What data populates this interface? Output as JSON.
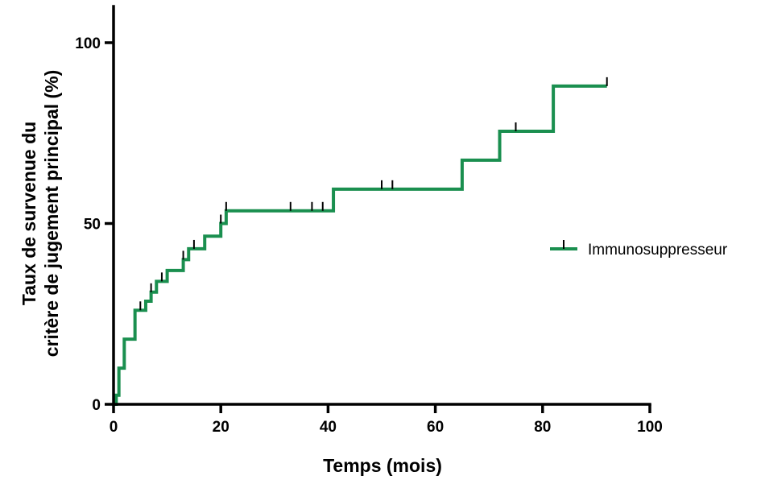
{
  "chart_data": {
    "type": "line",
    "style": "step",
    "title": "",
    "xlabel": "Temps (mois)",
    "ylabel": [
      "Taux de survenue du",
      "critère de jugement principal (%)"
    ],
    "xlim": [
      0,
      100
    ],
    "ylim": [
      0,
      110
    ],
    "xticks": [
      0,
      20,
      40,
      60,
      80,
      100
    ],
    "yticks": [
      0,
      50,
      100
    ],
    "grid": false,
    "legend_position": "right",
    "series": [
      {
        "name": "Immunosuppresseur",
        "color": "#1a8f4f",
        "steps": [
          {
            "x": 0,
            "y": 0
          },
          {
            "x": 0.5,
            "y": 2.5
          },
          {
            "x": 1,
            "y": 10
          },
          {
            "x": 2,
            "y": 18
          },
          {
            "x": 4,
            "y": 26
          },
          {
            "x": 6,
            "y": 28.5
          },
          {
            "x": 7,
            "y": 31
          },
          {
            "x": 8,
            "y": 34
          },
          {
            "x": 10,
            "y": 37
          },
          {
            "x": 13,
            "y": 40
          },
          {
            "x": 14,
            "y": 43
          },
          {
            "x": 17,
            "y": 46.5
          },
          {
            "x": 20,
            "y": 50
          },
          {
            "x": 21,
            "y": 53.5
          },
          {
            "x": 41,
            "y": 59.5
          },
          {
            "x": 65,
            "y": 67.5
          },
          {
            "x": 72,
            "y": 75.5
          },
          {
            "x": 82,
            "y": 88
          },
          {
            "x": 92,
            "y": 88
          }
        ],
        "censored": [
          {
            "x": 5,
            "y": 26
          },
          {
            "x": 7,
            "y": 31
          },
          {
            "x": 9,
            "y": 34
          },
          {
            "x": 13,
            "y": 40
          },
          {
            "x": 15,
            "y": 43
          },
          {
            "x": 20,
            "y": 50
          },
          {
            "x": 21,
            "y": 53.5
          },
          {
            "x": 33,
            "y": 53.5
          },
          {
            "x": 37,
            "y": 53.5
          },
          {
            "x": 39,
            "y": 53.5
          },
          {
            "x": 50,
            "y": 59.5
          },
          {
            "x": 52,
            "y": 59.5
          },
          {
            "x": 75,
            "y": 75.5
          },
          {
            "x": 92,
            "y": 88
          }
        ]
      }
    ]
  }
}
